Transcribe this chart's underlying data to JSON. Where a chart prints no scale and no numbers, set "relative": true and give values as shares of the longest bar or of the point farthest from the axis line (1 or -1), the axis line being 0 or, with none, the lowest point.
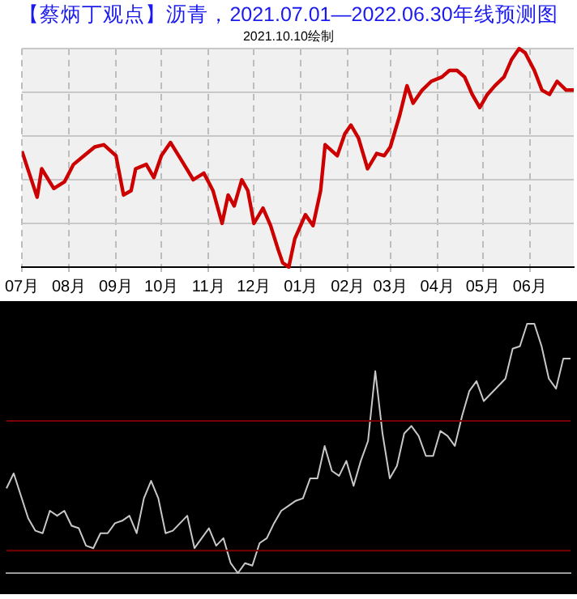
{
  "chart_data": [
    {
      "type": "line",
      "title": "【蔡炳丁观点】沥青，2021.07.01—2022.06.30年线预测图",
      "subtitle": "2021.10.10绘制",
      "x": [
        "2021-07-01",
        "2021-07-11",
        "2021-07-14",
        "2021-07-22",
        "2021-07-29",
        "2021-08-04",
        "2021-08-11",
        "2021-08-18",
        "2021-08-24",
        "2021-09-01",
        "2021-09-06",
        "2021-09-11",
        "2021-09-14",
        "2021-09-21",
        "2021-09-26",
        "2021-10-01",
        "2021-10-07",
        "2021-10-15",
        "2021-10-22",
        "2021-10-29",
        "2021-11-04",
        "2021-11-10",
        "2021-11-14",
        "2021-11-18",
        "2021-11-23",
        "2021-11-27",
        "2021-12-01",
        "2021-12-07",
        "2021-12-12",
        "2021-12-17",
        "2021-12-20",
        "2021-12-24",
        "2021-12-28",
        "2022-01-04",
        "2022-01-09",
        "2022-01-14",
        "2022-01-17",
        "2022-01-25",
        "2022-01-30",
        "2022-02-03",
        "2022-02-08",
        "2022-02-14",
        "2022-02-20",
        "2022-02-25",
        "2022-03-01",
        "2022-03-07",
        "2022-03-12",
        "2022-03-16",
        "2022-03-22",
        "2022-03-28",
        "2022-04-04",
        "2022-04-09",
        "2022-04-14",
        "2022-04-19",
        "2022-04-24",
        "2022-04-29",
        "2022-05-04",
        "2022-05-09",
        "2022-05-15",
        "2022-05-20",
        "2022-05-25",
        "2022-05-29",
        "2022-06-04",
        "2022-06-09",
        "2022-06-14",
        "2022-06-19",
        "2022-06-25",
        "2022-06-30"
      ],
      "values": [
        0.53,
        0.32,
        0.45,
        0.36,
        0.39,
        0.47,
        0.51,
        0.55,
        0.56,
        0.51,
        0.33,
        0.35,
        0.45,
        0.47,
        0.41,
        0.51,
        0.57,
        0.48,
        0.4,
        0.43,
        0.35,
        0.2,
        0.33,
        0.28,
        0.4,
        0.35,
        0.2,
        0.27,
        0.19,
        0.08,
        0.02,
        0,
        0.13,
        0.24,
        0.19,
        0.35,
        0.56,
        0.51,
        0.61,
        0.65,
        0.59,
        0.45,
        0.52,
        0.51,
        0.55,
        0.69,
        0.83,
        0.75,
        0.81,
        0.85,
        0.87,
        0.9,
        0.9,
        0.87,
        0.79,
        0.73,
        0.79,
        0.83,
        0.87,
        0.95,
        1,
        0.98,
        0.9,
        0.81,
        0.79,
        0.85,
        0.81,
        0.81
      ],
      "color": "#cc0000",
      "relative": true,
      "marker": "none",
      "grid": true,
      "xlim": [
        "2021-07-01",
        "2022-06-30"
      ],
      "xticks": [
        {
          "value": "2021-07-01",
          "label": "07月"
        },
        {
          "value": "2021-08-01",
          "label": "08月"
        },
        {
          "value": "2021-09-01",
          "label": "09月"
        },
        {
          "value": "2021-10-01",
          "label": "10月"
        },
        {
          "value": "2021-11-01",
          "label": "11月"
        },
        {
          "value": "2021-12-01",
          "label": "12月"
        },
        {
          "value": "2022-01-01",
          "label": "01月"
        },
        {
          "value": "2022-02-01",
          "label": "02月"
        },
        {
          "value": "2022-03-01",
          "label": "03月"
        },
        {
          "value": "2022-04-01",
          "label": "04月"
        },
        {
          "value": "2022-05-01",
          "label": "05月"
        },
        {
          "value": "2022-06-01",
          "label": "06月"
        }
      ]
    },
    {
      "type": "line",
      "categories": [
        null,
        null,
        null,
        null,
        null,
        null,
        null,
        null,
        null,
        null,
        null,
        null,
        null,
        null,
        null,
        null,
        null,
        null,
        null,
        null,
        null,
        null,
        null,
        null,
        null,
        null,
        null,
        null,
        null,
        null,
        null,
        null,
        null,
        null,
        null,
        null,
        null,
        null,
        null,
        null,
        null,
        null,
        null,
        null,
        null,
        null,
        null,
        null,
        null,
        null,
        null,
        null,
        null,
        null,
        null,
        null,
        null,
        null,
        null,
        null,
        null,
        null,
        null,
        null,
        null,
        null,
        null,
        null,
        null,
        null,
        null,
        null,
        null,
        null,
        null,
        null,
        null,
        null,
        null
      ],
      "values": [
        0.34,
        0.4,
        0.31,
        0.22,
        0.17,
        0.16,
        0.25,
        0.23,
        0.25,
        0.19,
        0.18,
        0.11,
        0.1,
        0.16,
        0.16,
        0.2,
        0.21,
        0.23,
        0.16,
        0.3,
        0.37,
        0.3,
        0.16,
        0.17,
        0.2,
        0.23,
        0.1,
        0.14,
        0.18,
        0.11,
        0.14,
        0.04,
        0,
        0.04,
        0.03,
        0.12,
        0.14,
        0.2,
        0.25,
        0.27,
        0.29,
        0.3,
        0.38,
        0.38,
        0.51,
        0.41,
        0.39,
        0.45,
        0.35,
        0.45,
        0.53,
        0.81,
        0.56,
        0.38,
        0.43,
        0.56,
        0.59,
        0.55,
        0.47,
        0.47,
        0.57,
        0.55,
        0.51,
        0.63,
        0.73,
        0.77,
        0.69,
        0.72,
        0.75,
        0.78,
        0.9,
        0.91,
        1,
        1,
        0.91,
        0.78,
        0.74,
        0.86,
        0.86
      ],
      "color": "#c8c8c8",
      "relative": true,
      "marker": "none",
      "ref_lines": [
        {
          "axis": "y",
          "value": 0.61,
          "color": "#7a0000"
        },
        {
          "axis": "y",
          "value": 0.09,
          "color": "#7a0000"
        }
      ]
    }
  ]
}
